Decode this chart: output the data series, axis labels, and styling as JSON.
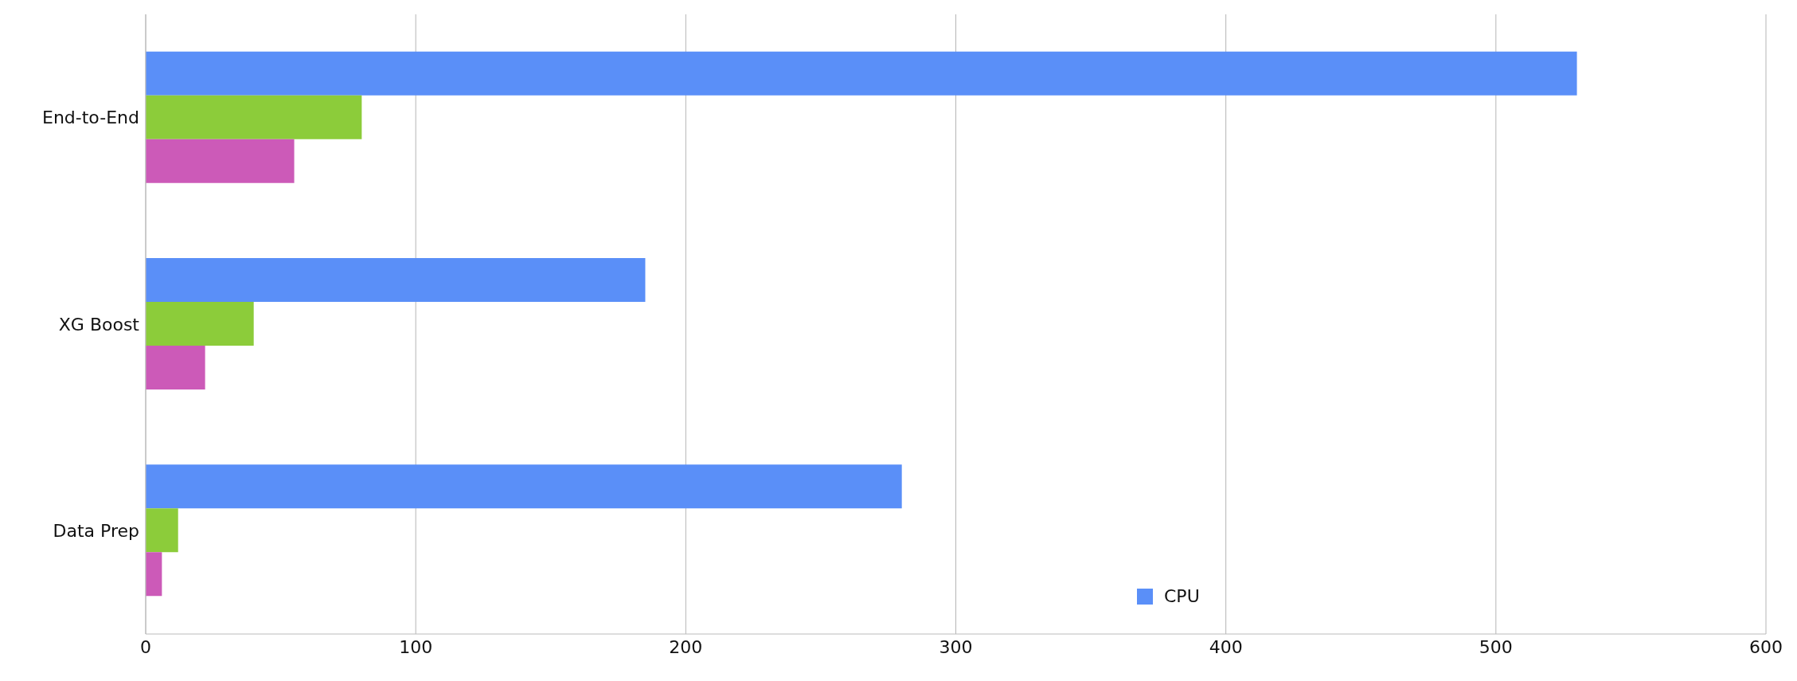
{
  "chart_data": {
    "type": "bar",
    "orientation": "horizontal",
    "categories": [
      "End-to-End",
      "XG Boost",
      "Data Prep"
    ],
    "series": [
      {
        "name": "CPU",
        "color": "#5a8ff8",
        "values": [
          530,
          185,
          280
        ]
      },
      {
        "color": "#8ccc3a",
        "values": [
          80,
          40,
          12
        ]
      },
      {
        "color": "#cc5ab8",
        "values": [
          55,
          22,
          6
        ]
      }
    ],
    "xlim": [
      0,
      600
    ],
    "xticks": [
      0,
      100,
      200,
      300,
      400,
      500,
      600
    ],
    "grid": "x",
    "legend": "bottom right"
  }
}
